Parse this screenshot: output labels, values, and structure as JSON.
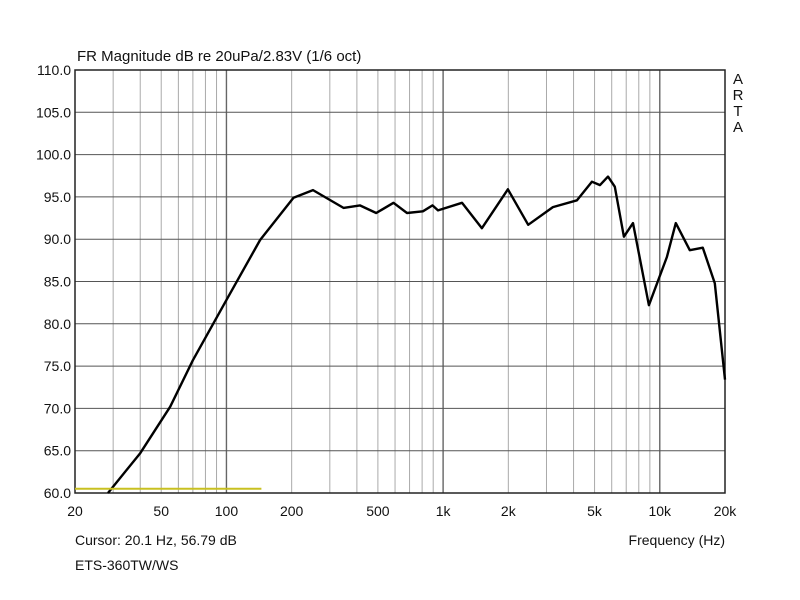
{
  "chart_data": {
    "type": "line",
    "title": "FR Magnitude dB re 20uPa/2.83V (1/6 oct)",
    "xlabel": "Frequency (Hz)",
    "ylabel": "",
    "xscale": "log",
    "xlim": [
      20,
      20000
    ],
    "ylim": [
      60,
      110
    ],
    "grid": true,
    "xticks": [
      {
        "v": 20,
        "label": "20"
      },
      {
        "v": 50,
        "label": "50"
      },
      {
        "v": 100,
        "label": "100"
      },
      {
        "v": 200,
        "label": "200"
      },
      {
        "v": 500,
        "label": "500"
      },
      {
        "v": 1000,
        "label": "1k"
      },
      {
        "v": 2000,
        "label": "2k"
      },
      {
        "v": 5000,
        "label": "5k"
      },
      {
        "v": 10000,
        "label": "10k"
      },
      {
        "v": 20000,
        "label": "20k"
      }
    ],
    "yticks": [
      {
        "v": 110,
        "label": "110.0"
      },
      {
        "v": 105,
        "label": "105.0"
      },
      {
        "v": 100,
        "label": "100.0"
      },
      {
        "v": 95,
        "label": "95.0"
      },
      {
        "v": 90,
        "label": "90.0"
      },
      {
        "v": 85,
        "label": "85.0"
      },
      {
        "v": 80,
        "label": "80.0"
      },
      {
        "v": 75,
        "label": "75.0"
      },
      {
        "v": 70,
        "label": "70.0"
      },
      {
        "v": 65,
        "label": "65.0"
      },
      {
        "v": 60,
        "label": "60.0"
      }
    ],
    "series": [
      {
        "name": "FR magnitude",
        "color": "#000000",
        "x": [
          28.4,
          40,
          55,
          70,
          100,
          143,
          204,
          251,
          347,
          413,
          491,
          590,
          681,
          807,
          893,
          947,
          1222,
          1510,
          1990,
          2470,
          3210,
          4150,
          4860,
          5300,
          5770,
          6200,
          6830,
          7520,
          8910,
          10790,
          11860,
          13760,
          15800,
          17950,
          20000
        ],
        "y": [
          60,
          64.7,
          70.2,
          75.7,
          82.8,
          89.9,
          94.9,
          95.8,
          93.7,
          94.0,
          93.1,
          94.3,
          93.1,
          93.3,
          94.0,
          93.4,
          94.3,
          91.3,
          95.9,
          91.7,
          93.8,
          94.6,
          96.8,
          96.4,
          97.4,
          96.2,
          90.3,
          91.9,
          82.2,
          87.9,
          91.9,
          88.7,
          89.0,
          84.8,
          73.4
        ]
      },
      {
        "name": "cursor level",
        "color": "#c8c020",
        "x": [
          20,
          145
        ],
        "y": [
          60.5,
          60.5
        ]
      }
    ],
    "watermark": "ARTA"
  },
  "footer": {
    "cursor": "Cursor: 20.1 Hz, 56.79 dB",
    "device": "ETS-360TW/WS"
  }
}
